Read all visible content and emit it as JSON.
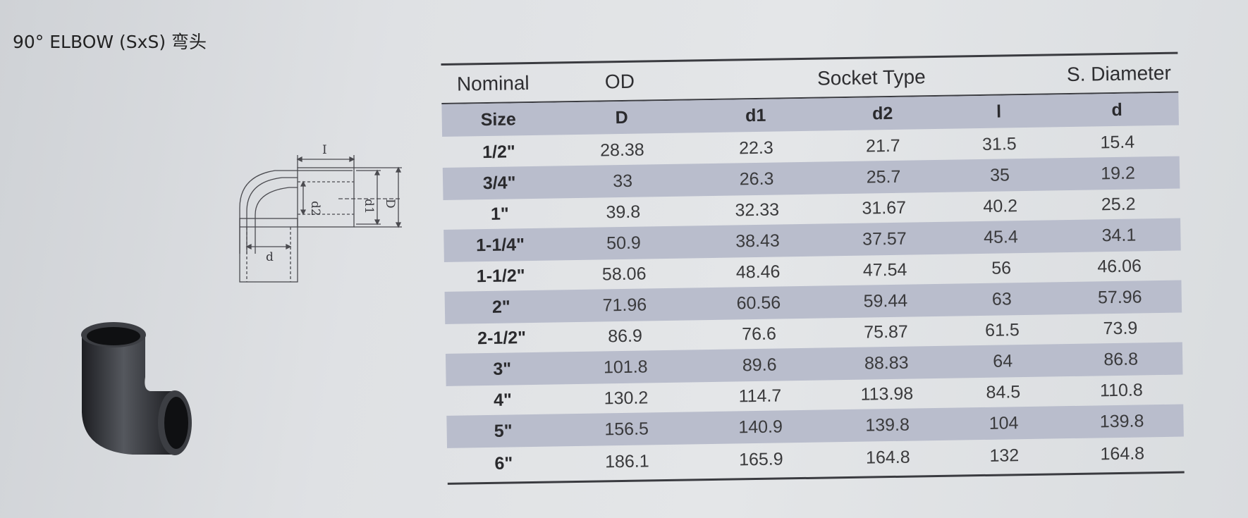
{
  "title": "90° ELBOW (SxS) 弯头",
  "drawing_labels": {
    "l": "I",
    "d2": "d2",
    "d1": "d1",
    "D": "D",
    "d": "d"
  },
  "table": {
    "header": {
      "nominal": "Nominal",
      "od": "OD",
      "socket_type": "Socket Type",
      "s_diameter": "S. Diameter"
    },
    "subheader": [
      "Size",
      "D",
      "d1",
      "d2",
      "l",
      "d"
    ],
    "rows": [
      [
        "1/2\"",
        "28.38",
        "22.3",
        "21.7",
        "31.5",
        "15.4"
      ],
      [
        "3/4\"",
        "33",
        "26.3",
        "25.7",
        "35",
        "19.2"
      ],
      [
        "1\"",
        "39.8",
        "32.33",
        "31.67",
        "40.2",
        "25.2"
      ],
      [
        "1-1/4\"",
        "50.9",
        "38.43",
        "37.57",
        "45.4",
        "34.1"
      ],
      [
        "1-1/2\"",
        "58.06",
        "48.46",
        "47.54",
        "56",
        "46.06"
      ],
      [
        "2\"",
        "71.96",
        "60.56",
        "59.44",
        "63",
        "57.96"
      ],
      [
        "2-1/2\"",
        "86.9",
        "76.6",
        "75.87",
        "61.5",
        "73.9"
      ],
      [
        "3\"",
        "101.8",
        "89.6",
        "88.83",
        "64",
        "86.8"
      ],
      [
        "4\"",
        "130.2",
        "114.7",
        "113.98",
        "84.5",
        "110.8"
      ],
      [
        "5\"",
        "156.5",
        "140.9",
        "139.8",
        "104",
        "139.8"
      ],
      [
        "6\"",
        "186.1",
        "165.9",
        "164.8",
        "132",
        "164.8"
      ]
    ]
  }
}
